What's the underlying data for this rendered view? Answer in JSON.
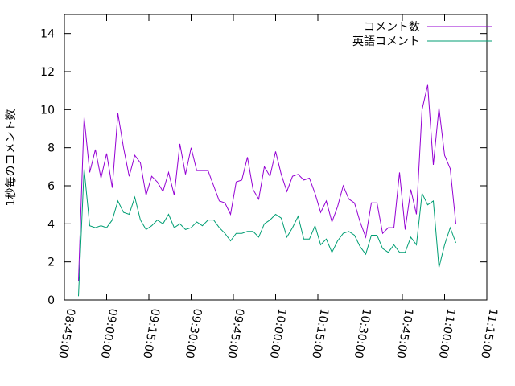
{
  "chart_data": {
    "type": "line",
    "y_label": "1秒毎のコメント数",
    "legend": "top right",
    "xlim": [
      "08:45:00",
      "11:15:00"
    ],
    "xticks": [
      "08:45:00",
      "09:00:00",
      "09:15:00",
      "09:30:00",
      "09:45:00",
      "10:00:00",
      "10:15:00",
      "10:30:00",
      "10:45:00",
      "11:00:00",
      "11:15:00"
    ],
    "ylim": [
      0,
      15
    ],
    "yticks": [
      0,
      2,
      4,
      6,
      8,
      10,
      12,
      14
    ],
    "x": [
      "08:50:00",
      "08:52:00",
      "08:54:00",
      "08:56:00",
      "08:58:00",
      "09:00:00",
      "09:02:00",
      "09:04:00",
      "09:06:00",
      "09:08:00",
      "09:10:00",
      "09:12:00",
      "09:14:00",
      "09:16:00",
      "09:18:00",
      "09:20:00",
      "09:22:00",
      "09:24:00",
      "09:26:00",
      "09:28:00",
      "09:30:00",
      "09:32:00",
      "09:34:00",
      "09:36:00",
      "09:38:00",
      "09:40:00",
      "09:42:00",
      "09:44:00",
      "09:46:00",
      "09:48:00",
      "09:50:00",
      "09:52:00",
      "09:54:00",
      "09:56:00",
      "09:58:00",
      "10:00:00",
      "10:02:00",
      "10:04:00",
      "10:06:00",
      "10:08:00",
      "10:10:00",
      "10:12:00",
      "10:14:00",
      "10:16:00",
      "10:18:00",
      "10:20:00",
      "10:22:00",
      "10:24:00",
      "10:26:00",
      "10:28:00",
      "10:30:00",
      "10:32:00",
      "10:34:00",
      "10:36:00",
      "10:38:00",
      "10:40:00",
      "10:42:00",
      "10:44:00",
      "10:46:00",
      "10:48:00",
      "10:50:00",
      "10:52:00",
      "10:54:00",
      "10:56:00",
      "10:58:00",
      "11:00:00",
      "11:02:00",
      "11:04:00"
    ],
    "series": [
      {
        "name": "コメント数",
        "color": "#9400d3",
        "values": [
          1.0,
          9.6,
          6.7,
          7.9,
          6.4,
          7.7,
          5.9,
          9.8,
          8.0,
          6.5,
          7.6,
          7.2,
          5.5,
          6.5,
          6.2,
          5.7,
          6.7,
          5.5,
          8.2,
          6.6,
          8.0,
          6.8,
          6.8,
          6.8,
          6.0,
          5.2,
          5.1,
          4.5,
          6.2,
          6.3,
          7.5,
          5.8,
          5.3,
          7.0,
          6.5,
          7.8,
          6.6,
          5.7,
          6.5,
          6.6,
          6.3,
          6.4,
          5.6,
          4.6,
          5.2,
          4.1,
          4.9,
          6.0,
          5.3,
          5.1,
          4.1,
          3.3,
          5.1,
          5.1,
          3.5,
          3.8,
          3.8,
          6.7,
          3.7,
          5.8,
          4.5,
          10.0,
          11.3,
          7.1,
          10.1,
          7.6,
          6.9,
          4.0
        ]
      },
      {
        "name": "英語コメント",
        "color": "#009e73",
        "values": [
          0.2,
          6.9,
          3.9,
          3.8,
          3.9,
          3.8,
          4.2,
          5.2,
          4.6,
          4.5,
          5.4,
          4.2,
          3.7,
          3.9,
          4.2,
          4.0,
          4.5,
          3.8,
          4.0,
          3.7,
          3.8,
          4.1,
          3.9,
          4.2,
          4.2,
          3.8,
          3.5,
          3.1,
          3.5,
          3.5,
          3.6,
          3.6,
          3.3,
          4.0,
          4.2,
          4.5,
          4.3,
          3.3,
          3.8,
          4.4,
          3.2,
          3.2,
          3.9,
          2.9,
          3.2,
          2.5,
          3.1,
          3.5,
          3.6,
          3.4,
          2.8,
          2.4,
          3.4,
          3.4,
          2.7,
          2.5,
          2.9,
          2.5,
          2.5,
          3.3,
          2.9,
          5.6,
          5.0,
          5.2,
          1.7,
          2.9,
          3.8,
          3.0
        ]
      }
    ]
  }
}
